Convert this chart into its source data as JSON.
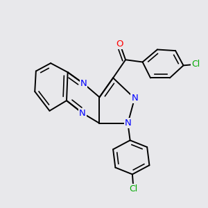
{
  "bg_color": "#e8e8eb",
  "bond_color": "#000000",
  "bond_width": 1.4,
  "atom_colors": {
    "N": "#0000ff",
    "O": "#ff0000",
    "Cl": "#00aa00"
  }
}
